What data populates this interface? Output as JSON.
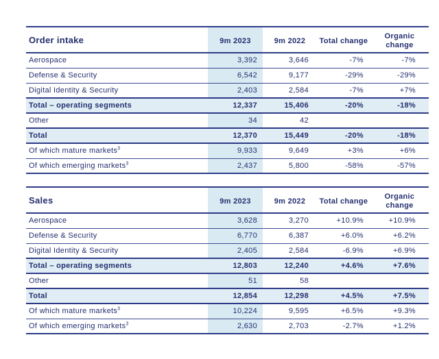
{
  "page": {
    "text_color": "#232e6e",
    "column_highlight_color": "#d9eaf3",
    "total_row_color": "#e0edf4",
    "border_color": "#2c3a87",
    "background_color": "#ffffff"
  },
  "tables": [
    {
      "title": "Order intake",
      "columns": [
        "9m 2023",
        "9m 2022",
        "Total change",
        "Organic change"
      ],
      "rows": [
        {
          "label": "Aerospace",
          "sup": "",
          "bold": false,
          "highlight": false,
          "values": [
            "3,392",
            "3,646",
            "-7%",
            "-7%"
          ]
        },
        {
          "label": "Defense & Security",
          "sup": "",
          "bold": false,
          "highlight": false,
          "values": [
            "6,542",
            "9,177",
            "-29%",
            "-29%"
          ]
        },
        {
          "label": "Digital Identity & Security",
          "sup": "",
          "bold": false,
          "highlight": false,
          "values": [
            "2,403",
            "2,584",
            "-7%",
            "+7%"
          ]
        },
        {
          "label": "Total – operating segments",
          "sup": "",
          "bold": true,
          "highlight": true,
          "values": [
            "12,337",
            "15,406",
            "-20%",
            "-18%"
          ]
        },
        {
          "label": "Other",
          "sup": "",
          "bold": false,
          "highlight": false,
          "values": [
            "34",
            "42",
            "",
            ""
          ]
        },
        {
          "label": "Total",
          "sup": "",
          "bold": true,
          "highlight": true,
          "values": [
            "12,370",
            "15,449",
            "-20%",
            "-18%"
          ]
        },
        {
          "label": "Of which mature markets",
          "sup": "3",
          "bold": false,
          "highlight": false,
          "values": [
            "9,933",
            "9,649",
            "+3%",
            "+6%"
          ]
        },
        {
          "label": "Of which emerging markets",
          "sup": "3",
          "bold": false,
          "highlight": false,
          "values": [
            "2,437",
            "5,800",
            "-58%",
            "-57%"
          ]
        }
      ]
    },
    {
      "title": "Sales",
      "columns": [
        "9m 2023",
        "9m 2022",
        "Total change",
        "Organic change"
      ],
      "rows": [
        {
          "label": "Aerospace",
          "sup": "",
          "bold": false,
          "highlight": false,
          "values": [
            "3,628",
            "3,270",
            "+10.9%",
            "+10.9%"
          ]
        },
        {
          "label": "Defense & Security",
          "sup": "",
          "bold": false,
          "highlight": false,
          "values": [
            "6,770",
            "6,387",
            "+6.0%",
            "+6.2%"
          ]
        },
        {
          "label": "Digital Identity & Security",
          "sup": "",
          "bold": false,
          "highlight": false,
          "values": [
            "2,405",
            "2,584",
            "-6.9%",
            "+6.9%"
          ]
        },
        {
          "label": "Total – operating segments",
          "sup": "",
          "bold": true,
          "highlight": true,
          "values": [
            "12,803",
            "12,240",
            "+4.6%",
            "+7.6%"
          ]
        },
        {
          "label": "Other",
          "sup": "",
          "bold": false,
          "highlight": false,
          "values": [
            "51",
            "58",
            "",
            ""
          ]
        },
        {
          "label": "Total",
          "sup": "",
          "bold": true,
          "highlight": true,
          "values": [
            "12,854",
            "12,298",
            "+4.5%",
            "+7.5%"
          ]
        },
        {
          "label": "Of which mature markets",
          "sup": "3",
          "bold": false,
          "highlight": false,
          "values": [
            "10,224",
            "9,595",
            "+6.5%",
            "+9.3%"
          ]
        },
        {
          "label": "Of which emerging markets",
          "sup": "3",
          "bold": false,
          "highlight": false,
          "values": [
            "2,630",
            "2,703",
            "-2.7%",
            "+1.2%"
          ]
        }
      ]
    }
  ]
}
